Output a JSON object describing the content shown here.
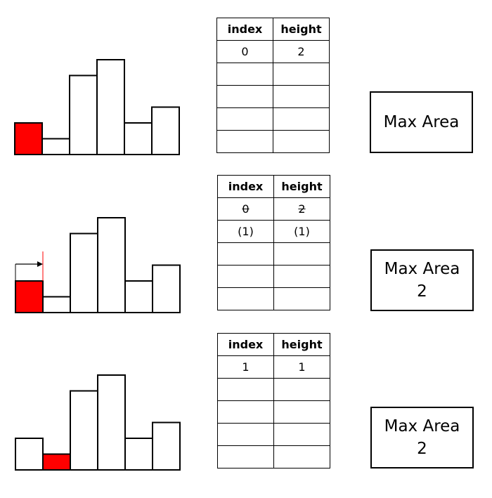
{
  "panels": [
    {
      "bars": [
        2,
        1,
        5,
        6,
        2,
        3
      ],
      "highlight_bar": 0,
      "arrow": false,
      "table": {
        "headers": [
          "index",
          "height"
        ],
        "rows": [
          [
            "0",
            "2"
          ],
          [
            "",
            ""
          ],
          [
            "",
            ""
          ],
          [
            "",
            ""
          ],
          [
            "",
            ""
          ]
        ],
        "struck_rows": []
      },
      "max_area_label": "Max Area",
      "max_area_value": ""
    },
    {
      "bars": [
        2,
        1,
        5,
        6,
        2,
        3
      ],
      "highlight_bar": 0,
      "arrow": true,
      "table": {
        "headers": [
          "index",
          "height"
        ],
        "rows": [
          [
            "0",
            "2"
          ],
          [
            "(1)",
            "(1)"
          ],
          [
            "",
            ""
          ],
          [
            "",
            ""
          ],
          [
            "",
            ""
          ]
        ],
        "struck_rows": [
          0
        ]
      },
      "max_area_label": "Max Area",
      "max_area_value": "2"
    },
    {
      "bars": [
        2,
        1,
        5,
        6,
        2,
        3
      ],
      "highlight_bar": 1,
      "arrow": false,
      "table": {
        "headers": [
          "index",
          "height"
        ],
        "rows": [
          [
            "1",
            "1"
          ],
          [
            "",
            ""
          ],
          [
            "",
            ""
          ],
          [
            "",
            ""
          ],
          [
            "",
            ""
          ]
        ],
        "struck_rows": []
      },
      "max_area_label": "Max Area",
      "max_area_value": "2"
    }
  ],
  "colors": {
    "highlight": "#ff0000",
    "bar": "#ffffff",
    "stroke": "#000000"
  }
}
